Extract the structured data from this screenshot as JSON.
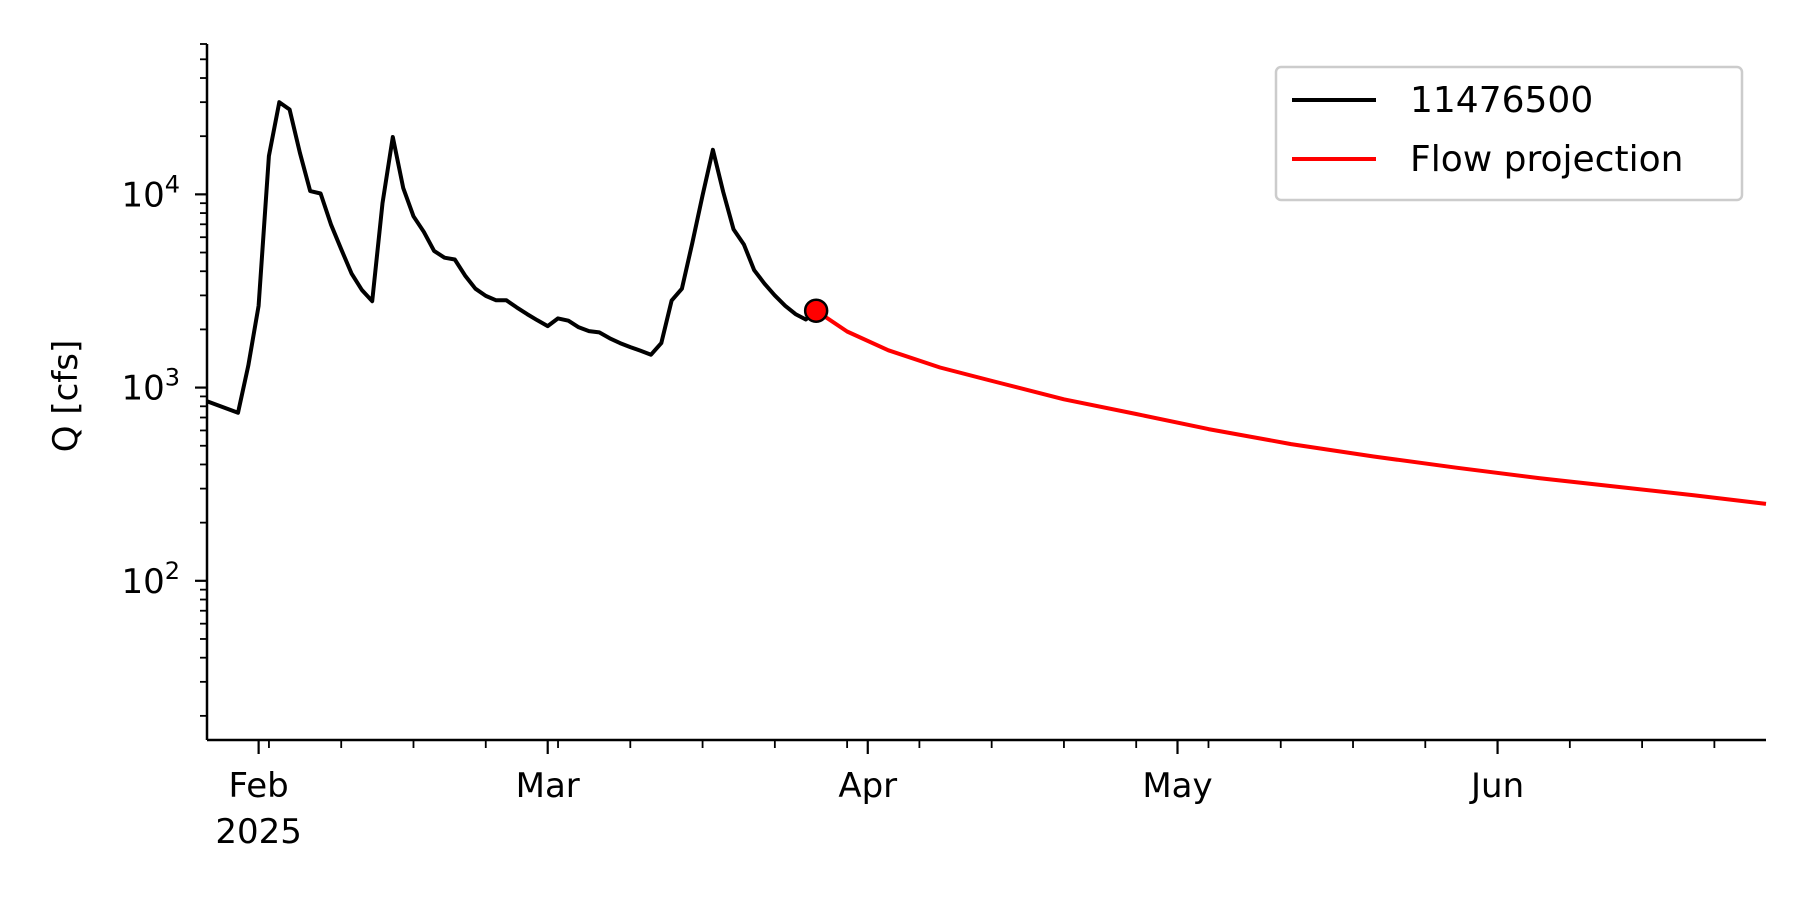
{
  "chart_data": {
    "type": "line",
    "title": "",
    "xlabel": "",
    "ylabel": "Q [cfs]",
    "y_scale": "log",
    "ylim": [
      15,
      60000
    ],
    "xlim": [
      "2025-01-27",
      "2025-06-27"
    ],
    "grid": false,
    "legend_position": "top-right",
    "x_ticks": [
      {
        "date": "2025-02-01",
        "label": "Feb",
        "sublabel": "2025"
      },
      {
        "date": "2025-03-01",
        "label": "Mar",
        "sublabel": ""
      },
      {
        "date": "2025-04-01",
        "label": "Apr",
        "sublabel": ""
      },
      {
        "date": "2025-05-01",
        "label": "May",
        "sublabel": ""
      },
      {
        "date": "2025-06-01",
        "label": "Jun",
        "sublabel": ""
      }
    ],
    "y_ticks": [
      {
        "value": 100,
        "base": "10",
        "exp": "2"
      },
      {
        "value": 1000,
        "base": "10",
        "exp": "3"
      },
      {
        "value": 10000,
        "base": "10",
        "exp": "4"
      }
    ],
    "series": [
      {
        "name": "11476500",
        "color": "#000000",
        "points": [
          [
            "2025-01-27",
            850
          ],
          [
            "2025-01-30",
            740
          ],
          [
            "2025-01-31",
            1300
          ],
          [
            "2025-02-01",
            2650
          ],
          [
            "2025-02-02",
            15800
          ],
          [
            "2025-02-03",
            30000
          ],
          [
            "2025-02-04",
            27500
          ],
          [
            "2025-02-05",
            16400
          ],
          [
            "2025-02-06",
            10400
          ],
          [
            "2025-02-07",
            10100
          ],
          [
            "2025-02-08",
            7000
          ],
          [
            "2025-02-09",
            5200
          ],
          [
            "2025-02-10",
            3900
          ],
          [
            "2025-02-11",
            3200
          ],
          [
            "2025-02-12",
            2800
          ],
          [
            "2025-02-13",
            9000
          ],
          [
            "2025-02-14",
            19800
          ],
          [
            "2025-02-15",
            10800
          ],
          [
            "2025-02-16",
            7700
          ],
          [
            "2025-02-17",
            6400
          ],
          [
            "2025-02-18",
            5100
          ],
          [
            "2025-02-19",
            4700
          ],
          [
            "2025-02-20",
            4600
          ],
          [
            "2025-02-21",
            3800
          ],
          [
            "2025-02-22",
            3250
          ],
          [
            "2025-02-23",
            2980
          ],
          [
            "2025-02-24",
            2830
          ],
          [
            "2025-02-25",
            2830
          ],
          [
            "2025-02-26",
            2600
          ],
          [
            "2025-02-27",
            2400
          ],
          [
            "2025-02-28",
            2230
          ],
          [
            "2025-03-01",
            2080
          ],
          [
            "2025-03-02",
            2280
          ],
          [
            "2025-03-03",
            2220
          ],
          [
            "2025-03-04",
            2050
          ],
          [
            "2025-03-05",
            1960
          ],
          [
            "2025-03-06",
            1930
          ],
          [
            "2025-03-07",
            1800
          ],
          [
            "2025-03-08",
            1700
          ],
          [
            "2025-03-09",
            1620
          ],
          [
            "2025-03-10",
            1550
          ],
          [
            "2025-03-11",
            1480
          ],
          [
            "2025-03-12",
            1700
          ],
          [
            "2025-03-13",
            2820
          ],
          [
            "2025-03-14",
            3250
          ],
          [
            "2025-03-15",
            5600
          ],
          [
            "2025-03-16",
            9900
          ],
          [
            "2025-03-17",
            17000
          ],
          [
            "2025-03-18",
            10300
          ],
          [
            "2025-03-19",
            6600
          ],
          [
            "2025-03-20",
            5500
          ],
          [
            "2025-03-21",
            4050
          ],
          [
            "2025-03-22",
            3450
          ],
          [
            "2025-03-23",
            3000
          ],
          [
            "2025-03-24",
            2650
          ],
          [
            "2025-03-25",
            2400
          ],
          [
            "2025-03-26",
            2250
          ],
          [
            "2025-03-27",
            2500
          ]
        ]
      },
      {
        "name": "Flow projection",
        "color": "#ff0000",
        "points": [
          [
            "2025-03-27",
            2500
          ],
          [
            "2025-03-30",
            1950
          ],
          [
            "2025-04-03",
            1560
          ],
          [
            "2025-04-08",
            1270
          ],
          [
            "2025-04-14",
            1050
          ],
          [
            "2025-04-20",
            870
          ],
          [
            "2025-04-27",
            730
          ],
          [
            "2025-05-04",
            610
          ],
          [
            "2025-05-12",
            510
          ],
          [
            "2025-05-20",
            440
          ],
          [
            "2025-05-28",
            385
          ],
          [
            "2025-06-05",
            340
          ],
          [
            "2025-06-13",
            305
          ],
          [
            "2025-06-20",
            277
          ],
          [
            "2025-06-27",
            250
          ],
          [
            "2025-06-27",
            250
          ]
        ]
      }
    ],
    "marker": {
      "date": "2025-03-27",
      "value": 2500,
      "color": "#ff0000"
    }
  }
}
